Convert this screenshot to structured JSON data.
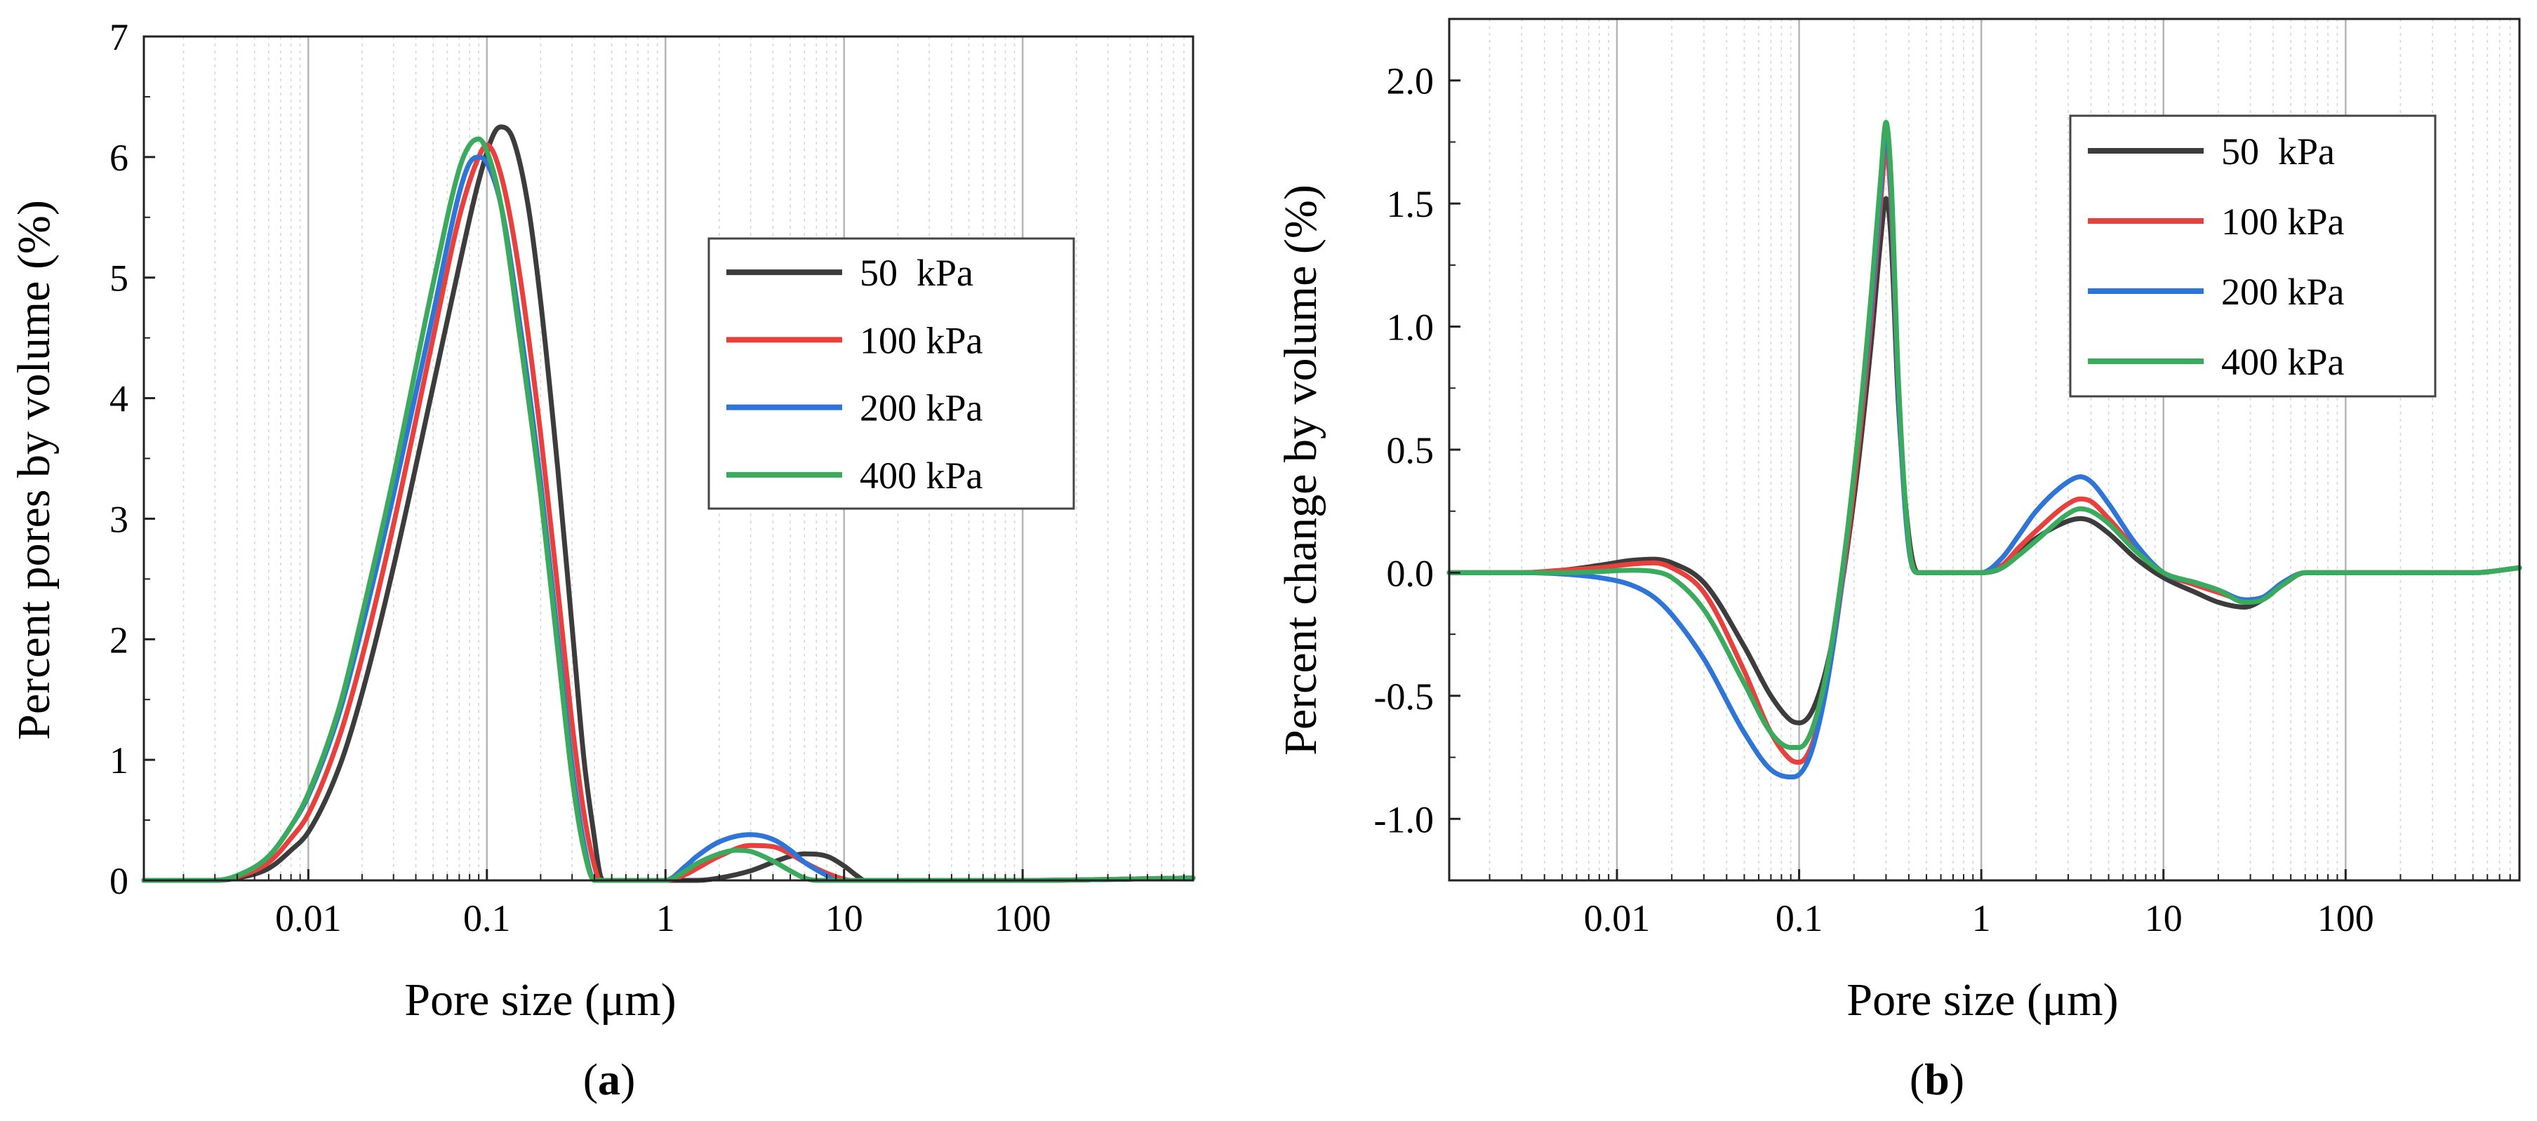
{
  "chart_data": [
    {
      "type": "line",
      "panel": "a",
      "panel_label": {
        "open": "(",
        "letter": "a",
        "close": ")"
      },
      "title": "",
      "xlabel": "Pore size (μm)",
      "ylabel": "Percent pores by volume (%)",
      "xscale": "log",
      "xlim": [
        0.0012,
        900
      ],
      "ylim": [
        0,
        7
      ],
      "xticks": [
        0.01,
        0.1,
        1,
        10,
        100
      ],
      "xtick_labels": [
        "0.01",
        "0.1",
        "1",
        "10",
        "100"
      ],
      "yticks": [
        0,
        1,
        2,
        3,
        4,
        5,
        6,
        7
      ],
      "ytick_labels": [
        "0",
        "1",
        "2",
        "3",
        "4",
        "5",
        "6",
        "7"
      ],
      "grid": "vertical log gridlines (major solid, minor dotted)",
      "legend_position": "center-right",
      "series": [
        {
          "name": "50  kPa",
          "color": "#3c3c3c",
          "x": [
            0.0012,
            0.003,
            0.004,
            0.006,
            0.008,
            0.01,
            0.015,
            0.02,
            0.03,
            0.05,
            0.07,
            0.09,
            0.11,
            0.12,
            0.14,
            0.17,
            0.2,
            0.25,
            0.3,
            0.35,
            0.4,
            0.43,
            0.45,
            1,
            1.5,
            2,
            3,
            4,
            5,
            6,
            8,
            10,
            12,
            13,
            20,
            100,
            900
          ],
          "values": [
            0,
            0,
            0.02,
            0.1,
            0.25,
            0.4,
            0.95,
            1.55,
            2.6,
            4.1,
            5.1,
            5.8,
            6.2,
            6.25,
            6.15,
            5.6,
            4.8,
            3.4,
            2.1,
            1.0,
            0.35,
            0.05,
            0,
            0,
            0,
            0.02,
            0.08,
            0.15,
            0.2,
            0.22,
            0.2,
            0.12,
            0.03,
            0,
            0,
            0,
            0.02
          ]
        },
        {
          "name": "100 kPa",
          "color": "#e8403c",
          "x": [
            0.0012,
            0.003,
            0.004,
            0.006,
            0.008,
            0.01,
            0.015,
            0.02,
            0.03,
            0.05,
            0.07,
            0.09,
            0.1,
            0.12,
            0.15,
            0.2,
            0.25,
            0.3,
            0.35,
            0.4,
            0.43,
            1,
            1.3,
            1.5,
            2,
            3,
            4,
            5,
            6,
            8,
            10,
            11,
            20,
            100,
            900
          ],
          "values": [
            0,
            0,
            0.03,
            0.15,
            0.35,
            0.55,
            1.2,
            1.85,
            2.95,
            4.5,
            5.5,
            6.0,
            6.1,
            5.85,
            5.1,
            3.7,
            2.4,
            1.3,
            0.55,
            0.12,
            0,
            0,
            0.05,
            0.1,
            0.2,
            0.29,
            0.28,
            0.22,
            0.15,
            0.06,
            0.01,
            0,
            0,
            0,
            0.02
          ]
        },
        {
          "name": "200 kPa",
          "color": "#2f74d8",
          "x": [
            0.0012,
            0.003,
            0.004,
            0.006,
            0.008,
            0.01,
            0.015,
            0.02,
            0.03,
            0.05,
            0.07,
            0.08,
            0.09,
            0.1,
            0.12,
            0.15,
            0.2,
            0.25,
            0.3,
            0.35,
            0.4,
            1,
            1.3,
            1.5,
            2,
            3,
            4,
            5,
            6,
            8,
            9,
            20,
            100,
            900
          ],
          "values": [
            0,
            0,
            0.04,
            0.2,
            0.45,
            0.7,
            1.4,
            2.1,
            3.2,
            4.7,
            5.7,
            5.95,
            6.0,
            5.95,
            5.6,
            4.7,
            3.3,
            2.0,
            0.95,
            0.3,
            0,
            0,
            0.12,
            0.2,
            0.32,
            0.38,
            0.34,
            0.25,
            0.15,
            0.04,
            0,
            0,
            0,
            0.02
          ]
        },
        {
          "name": "400 kPa",
          "color": "#3aaa5c",
          "x": [
            0.0012,
            0.003,
            0.004,
            0.006,
            0.008,
            0.01,
            0.015,
            0.02,
            0.03,
            0.05,
            0.07,
            0.08,
            0.09,
            0.1,
            0.12,
            0.15,
            0.2,
            0.25,
            0.3,
            0.35,
            0.4,
            1,
            1.3,
            1.5,
            2,
            2.5,
            3,
            4,
            5,
            6,
            7,
            20,
            100,
            900
          ],
          "values": [
            0,
            0,
            0.04,
            0.2,
            0.45,
            0.72,
            1.45,
            2.2,
            3.35,
            4.95,
            5.9,
            6.1,
            6.15,
            6.05,
            5.6,
            4.6,
            3.2,
            1.9,
            0.85,
            0.25,
            0,
            0,
            0.08,
            0.14,
            0.22,
            0.25,
            0.24,
            0.16,
            0.08,
            0.02,
            0,
            0,
            0,
            0.02
          ]
        }
      ]
    },
    {
      "type": "line",
      "panel": "b",
      "panel_label": {
        "open": "(",
        "letter": "b",
        "close": ")"
      },
      "title": "",
      "xlabel": "Pore size (μm)",
      "ylabel": "Percent change by volume (%)",
      "xscale": "log",
      "xlim": [
        0.0012,
        900
      ],
      "ylim": [
        -1.25,
        2.25
      ],
      "xticks": [
        0.01,
        0.1,
        1,
        10,
        100
      ],
      "xtick_labels": [
        "0.01",
        "0.1",
        "1",
        "10",
        "100"
      ],
      "yticks": [
        -1.0,
        -0.5,
        0.0,
        0.5,
        1.0,
        1.5,
        2.0
      ],
      "ytick_labels": [
        "-1.0",
        "-0.5",
        "0.0",
        "0.5",
        "1.0",
        "1.5",
        "2.0"
      ],
      "grid": "vertical log gridlines (major solid, minor dotted)",
      "legend_position": "top-right",
      "series": [
        {
          "name": "50  kPa",
          "color": "#3c3c3c",
          "x": [
            0.0012,
            0.003,
            0.005,
            0.008,
            0.012,
            0.016,
            0.02,
            0.03,
            0.05,
            0.07,
            0.09,
            0.1,
            0.12,
            0.15,
            0.2,
            0.25,
            0.28,
            0.3,
            0.32,
            0.35,
            0.4,
            0.45,
            1,
            1.3,
            1.6,
            2,
            3,
            3.5,
            4,
            5,
            7,
            10,
            15,
            20,
            28,
            35,
            45,
            60,
            100,
            500,
            900
          ],
          "values": [
            0,
            0,
            0.01,
            0.03,
            0.05,
            0.055,
            0.04,
            -0.04,
            -0.3,
            -0.5,
            -0.6,
            -0.61,
            -0.55,
            -0.3,
            0.3,
            0.95,
            1.35,
            1.52,
            1.35,
            0.7,
            0.15,
            0,
            0,
            0.02,
            0.08,
            0.14,
            0.21,
            0.22,
            0.21,
            0.16,
            0.06,
            -0.02,
            -0.08,
            -0.12,
            -0.14,
            -0.11,
            -0.05,
            0,
            0,
            0,
            0.02
          ]
        },
        {
          "name": "100 kPa",
          "color": "#e8403c",
          "x": [
            0.0012,
            0.003,
            0.005,
            0.008,
            0.012,
            0.016,
            0.02,
            0.03,
            0.05,
            0.07,
            0.09,
            0.1,
            0.12,
            0.15,
            0.2,
            0.25,
            0.28,
            0.3,
            0.32,
            0.35,
            0.4,
            0.45,
            1,
            1.3,
            1.6,
            2,
            3,
            3.5,
            4,
            5,
            7,
            10,
            15,
            20,
            28,
            35,
            45,
            60,
            100,
            500,
            900
          ],
          "values": [
            0,
            0,
            0.01,
            0.02,
            0.035,
            0.04,
            0.02,
            -0.08,
            -0.4,
            -0.65,
            -0.76,
            -0.77,
            -0.68,
            -0.35,
            0.35,
            1.05,
            1.5,
            1.72,
            1.5,
            0.75,
            0.12,
            0,
            0,
            0.03,
            0.1,
            0.17,
            0.28,
            0.3,
            0.29,
            0.22,
            0.1,
            0,
            -0.05,
            -0.08,
            -0.11,
            -0.1,
            -0.05,
            0,
            0,
            0,
            0.02
          ]
        },
        {
          "name": "200 kPa",
          "color": "#2f74d8",
          "x": [
            0.0012,
            0.003,
            0.005,
            0.008,
            0.012,
            0.016,
            0.02,
            0.03,
            0.05,
            0.07,
            0.09,
            0.1,
            0.12,
            0.15,
            0.2,
            0.25,
            0.28,
            0.3,
            0.32,
            0.35,
            0.4,
            0.45,
            1,
            1.3,
            1.6,
            2,
            3,
            3.5,
            4,
            5,
            7,
            10,
            15,
            20,
            28,
            35,
            45,
            60,
            100,
            500,
            900
          ],
          "values": [
            0,
            0,
            -0.005,
            -0.02,
            -0.05,
            -0.1,
            -0.17,
            -0.35,
            -0.65,
            -0.8,
            -0.83,
            -0.82,
            -0.7,
            -0.35,
            0.4,
            1.1,
            1.55,
            1.8,
            1.55,
            0.75,
            0.1,
            0,
            0,
            0.06,
            0.15,
            0.25,
            0.37,
            0.39,
            0.37,
            0.28,
            0.12,
            0,
            -0.04,
            -0.07,
            -0.11,
            -0.1,
            -0.04,
            0,
            0,
            0,
            0.02
          ]
        },
        {
          "name": "400 kPa",
          "color": "#3aaa5c",
          "x": [
            0.0012,
            0.003,
            0.005,
            0.008,
            0.012,
            0.016,
            0.02,
            0.03,
            0.05,
            0.07,
            0.09,
            0.1,
            0.12,
            0.15,
            0.2,
            0.25,
            0.28,
            0.3,
            0.32,
            0.35,
            0.4,
            0.45,
            1,
            1.3,
            1.6,
            2,
            3,
            3.5,
            4,
            5,
            7,
            10,
            15,
            20,
            28,
            35,
            45,
            60,
            100,
            500,
            900
          ],
          "values": [
            0,
            0,
            0,
            0.005,
            0.01,
            0.005,
            -0.02,
            -0.15,
            -0.45,
            -0.65,
            -0.71,
            -0.71,
            -0.62,
            -0.3,
            0.4,
            1.15,
            1.6,
            1.83,
            1.6,
            0.8,
            0.12,
            0,
            0,
            0.02,
            0.07,
            0.13,
            0.24,
            0.26,
            0.25,
            0.2,
            0.09,
            0,
            -0.04,
            -0.07,
            -0.12,
            -0.11,
            -0.05,
            0,
            0,
            0,
            0.02
          ]
        }
      ]
    }
  ]
}
